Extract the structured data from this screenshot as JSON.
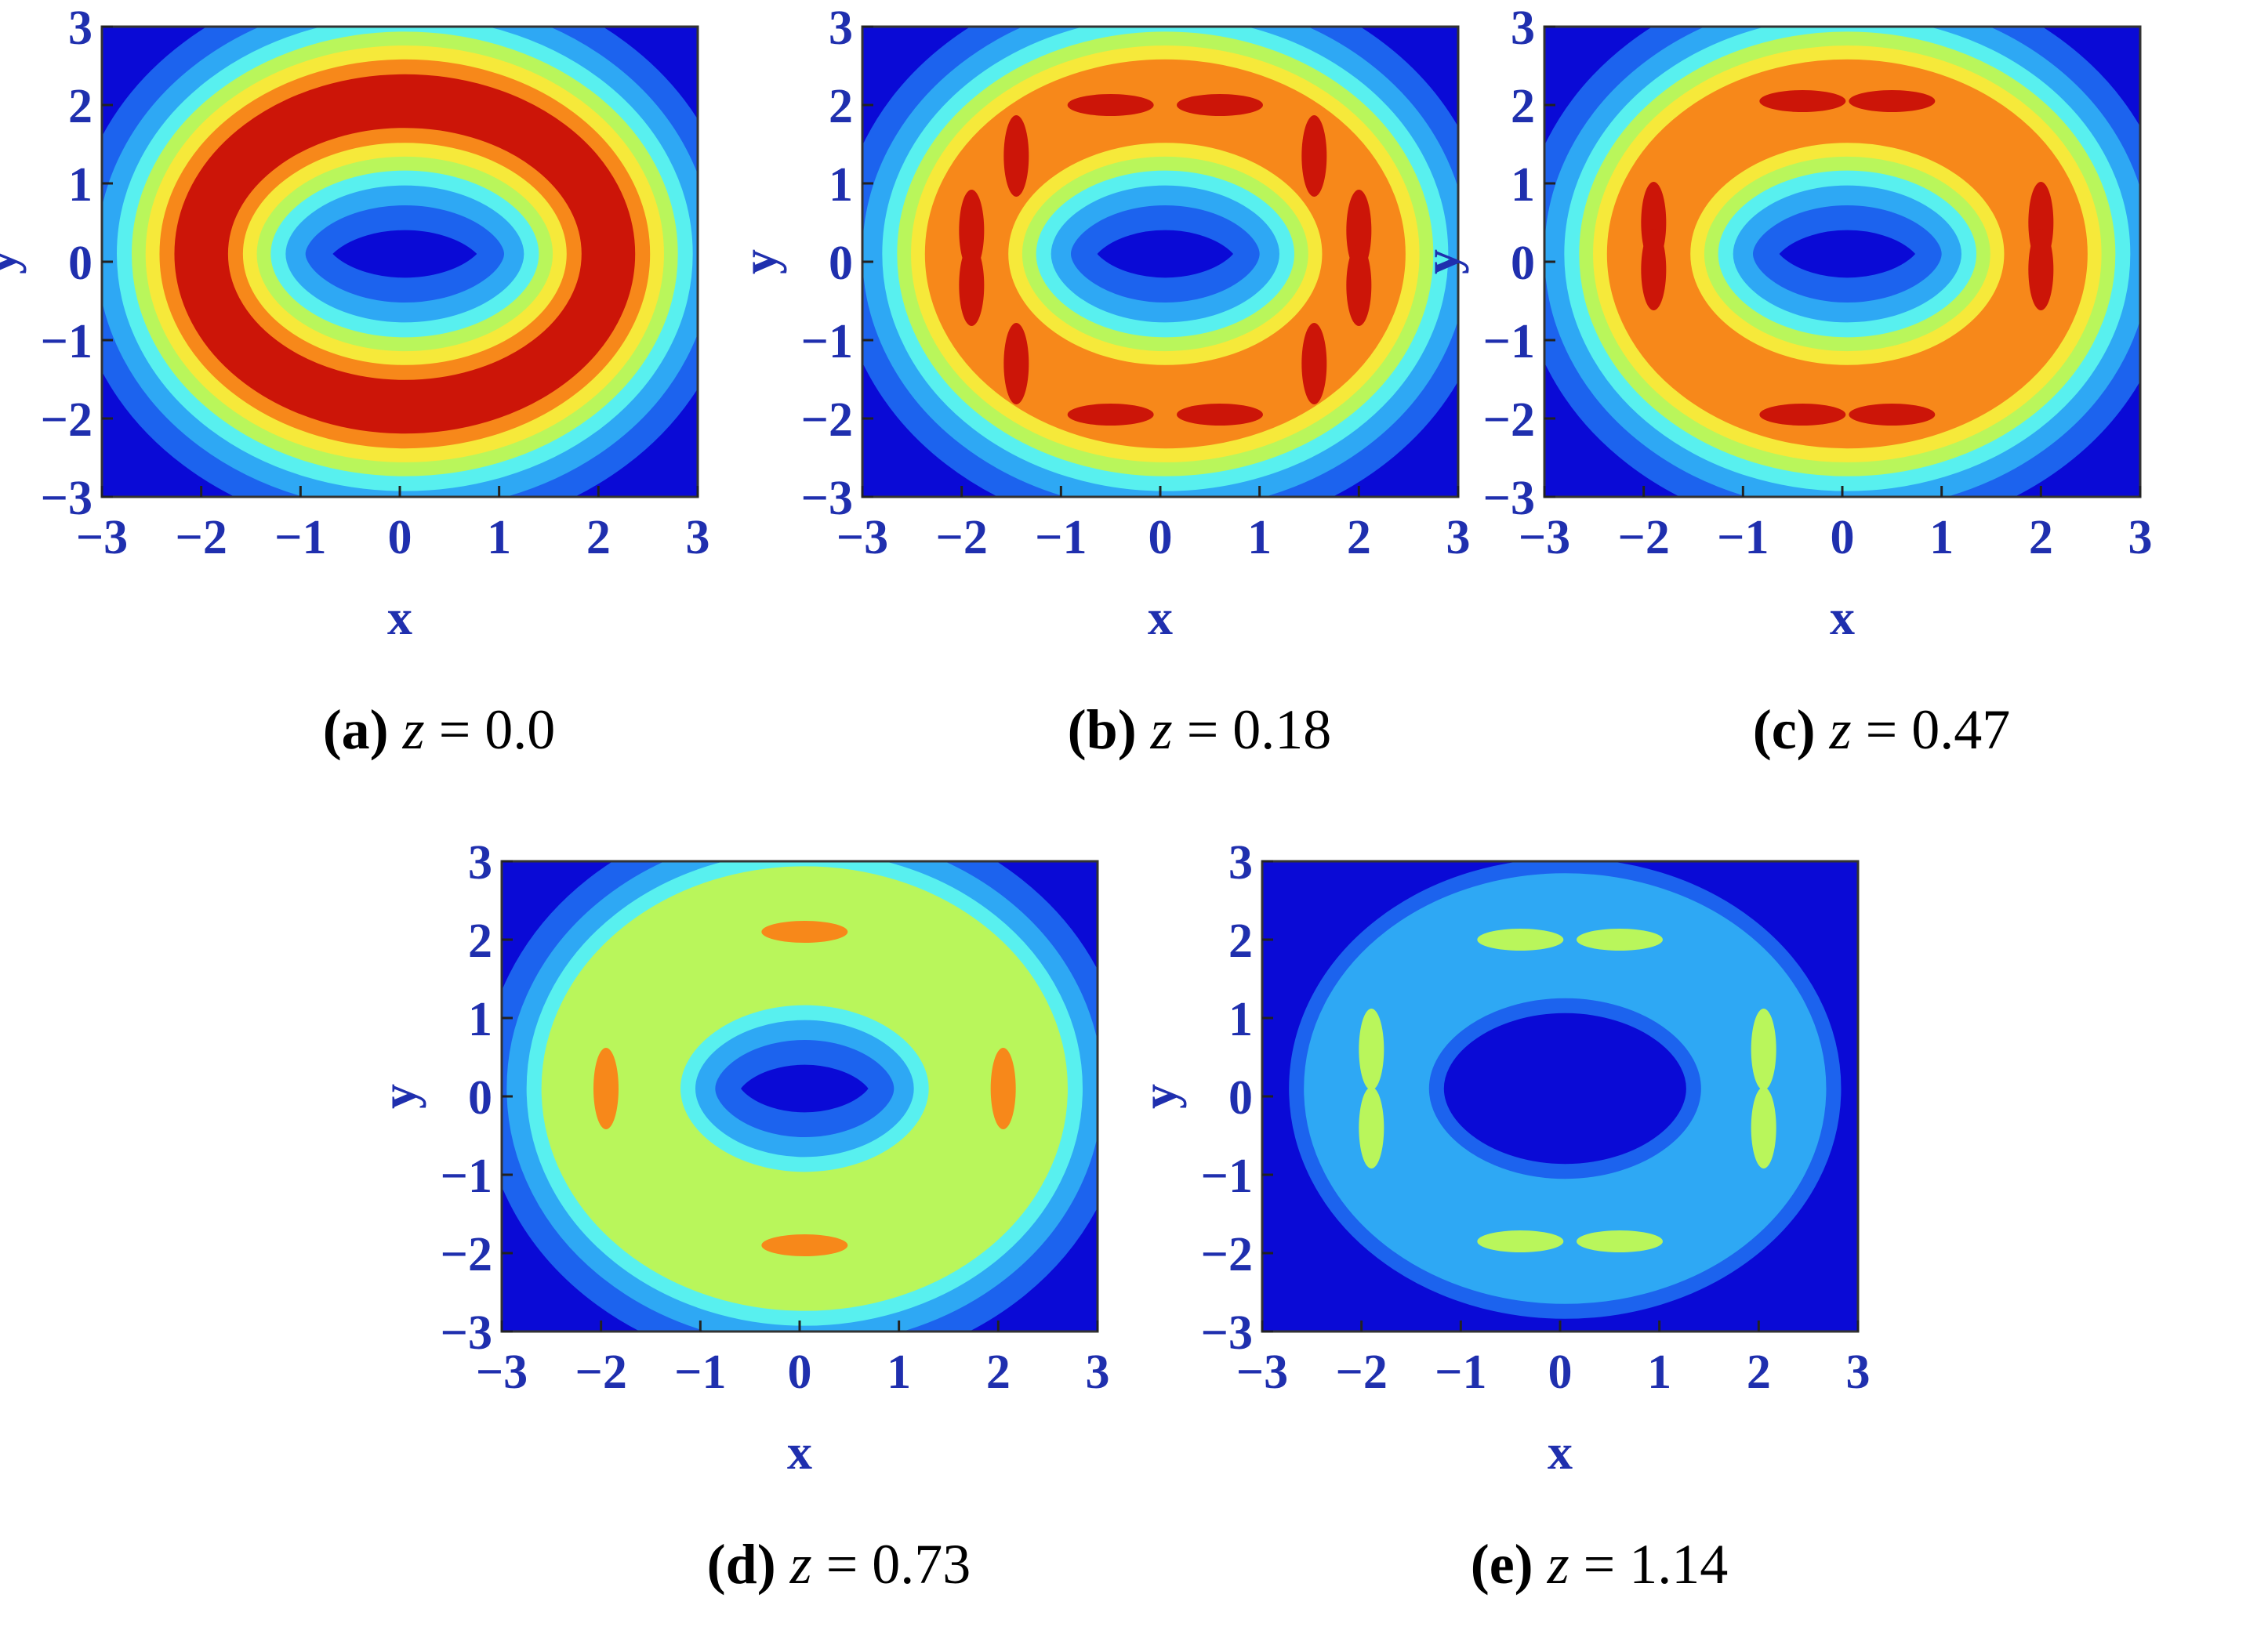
{
  "colors": {
    "background": "#0a0ad6",
    "axis_text": "#1f2fae",
    "levels": [
      "#0a0ad6",
      "#1c63ee",
      "#2ea8f4",
      "#58f0ef",
      "#b9f65b",
      "#f6e93a",
      "#f7881a",
      "#cc1508"
    ]
  },
  "chart_data": [
    {
      "type": "heatmap",
      "panel_label": "(a)",
      "caption_var": "z",
      "caption_value": "= 0.0",
      "xlabel": "x",
      "ylabel": "y",
      "xlim": [
        -3,
        3
      ],
      "ylim": [
        -3,
        3
      ],
      "xticks": [
        "−3",
        "−2",
        "−1",
        "0",
        "1",
        "2",
        "3"
      ],
      "yticks": [
        "3",
        "2",
        "1",
        "0",
        "−1",
        "−2",
        "−3"
      ],
      "ring": {
        "radius_x": 2.05,
        "radius_y": 1.95,
        "center": [
          0.05,
          0.1
        ]
      },
      "peak_level": 7,
      "hotspots": []
    },
    {
      "type": "heatmap",
      "panel_label": "(b)",
      "caption_var": "z",
      "caption_value": "= 0.18",
      "xlabel": "x",
      "ylabel": "y",
      "xlim": [
        -3,
        3
      ],
      "ylim": [
        -3,
        3
      ],
      "xticks": [
        "−3",
        "−2",
        "−1",
        "0",
        "1",
        "2",
        "3"
      ],
      "yticks": [
        "3",
        "2",
        "1",
        "0",
        "−1",
        "−2",
        "−3"
      ],
      "ring": {
        "radius_x": 2.0,
        "radius_y": 1.95,
        "center": [
          0.05,
          0.1
        ]
      },
      "peak_level": 6,
      "hotspots": [
        [
          -1.9,
          0.4
        ],
        [
          -1.9,
          -0.3
        ],
        [
          2.0,
          0.4
        ],
        [
          2.0,
          -0.3
        ],
        [
          -0.5,
          2.0
        ],
        [
          0.6,
          2.0
        ],
        [
          -0.5,
          -1.95
        ],
        [
          0.6,
          -1.95
        ],
        [
          -1.45,
          1.35
        ],
        [
          1.55,
          1.35
        ],
        [
          -1.45,
          -1.3
        ],
        [
          1.55,
          -1.3
        ]
      ]
    },
    {
      "type": "heatmap",
      "panel_label": "(c)",
      "caption_var": "z",
      "caption_value": "= 0.47",
      "xlabel": "x",
      "ylabel": "y",
      "xlim": [
        -3,
        3
      ],
      "ylim": [
        -3,
        3
      ],
      "xticks": [
        "−3",
        "−2",
        "−1",
        "0",
        "1",
        "2",
        "3"
      ],
      "yticks": [
        "3",
        "2",
        "1",
        "0",
        "−1",
        "−2",
        "−3"
      ],
      "ring": {
        "radius_x": 2.0,
        "radius_y": 1.95,
        "center": [
          0.05,
          0.1
        ]
      },
      "peak_level": 6,
      "hotspots": [
        [
          -1.9,
          0.5
        ],
        [
          -1.9,
          -0.1
        ],
        [
          2.0,
          0.5
        ],
        [
          2.0,
          -0.1
        ],
        [
          -0.4,
          2.05
        ],
        [
          0.5,
          2.05
        ],
        [
          -0.4,
          -1.95
        ],
        [
          0.5,
          -1.95
        ]
      ]
    },
    {
      "type": "heatmap",
      "panel_label": "(d)",
      "caption_var": "z",
      "caption_value": "= 0.73",
      "xlabel": "x",
      "ylabel": "y",
      "xlim": [
        -3,
        3
      ],
      "ylim": [
        -3,
        3
      ],
      "xticks": [
        "−3",
        "−2",
        "−1",
        "0",
        "1",
        "2",
        "3"
      ],
      "yticks": [
        "3",
        "2",
        "1",
        "0",
        "−1",
        "−2",
        "−3"
      ],
      "ring": {
        "radius_x": 1.95,
        "radius_y": 1.95,
        "center": [
          0.05,
          0.1
        ]
      },
      "peak_level": 4,
      "hotspots": [
        [
          -1.95,
          0.1
        ],
        [
          2.05,
          0.1
        ],
        [
          0.05,
          2.1
        ],
        [
          0.05,
          -1.9
        ]
      ]
    },
    {
      "type": "heatmap",
      "panel_label": "(e)",
      "caption_var": "z",
      "caption_value": "= 1.14",
      "xlabel": "x",
      "ylabel": "y",
      "xlim": [
        -3,
        3
      ],
      "ylim": [
        -3,
        3
      ],
      "xticks": [
        "−3",
        "−2",
        "−1",
        "0",
        "1",
        "2",
        "3"
      ],
      "yticks": [
        "3",
        "2",
        "1",
        "0",
        "−1",
        "−2",
        "−3"
      ],
      "ring": {
        "radius_x": 2.0,
        "radius_y": 1.95,
        "center": [
          0.05,
          0.1
        ]
      },
      "peak_level": 2,
      "hotspots": [
        [
          -1.9,
          0.6
        ],
        [
          -1.9,
          -0.4
        ],
        [
          2.05,
          0.6
        ],
        [
          2.05,
          -0.4
        ],
        [
          -0.4,
          2.0
        ],
        [
          0.6,
          2.0
        ],
        [
          -0.4,
          -1.85
        ],
        [
          0.6,
          -1.85
        ]
      ]
    }
  ]
}
